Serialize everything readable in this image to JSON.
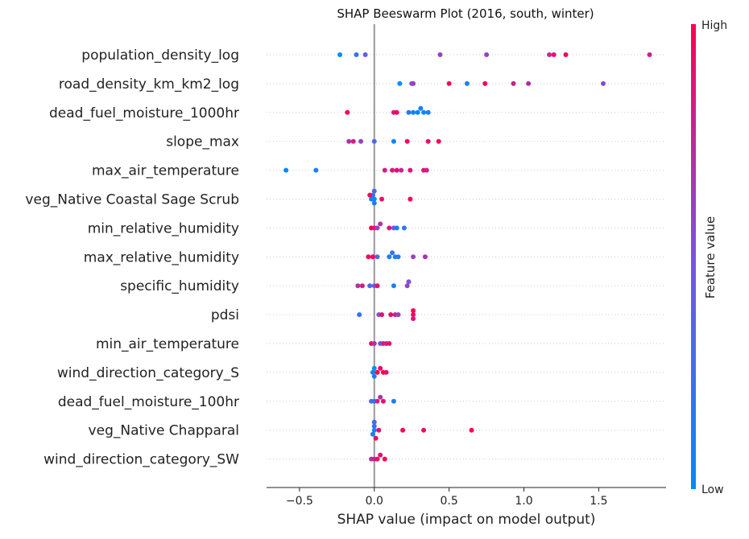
{
  "chart_data": {
    "type": "scatter",
    "title": "SHAP Beeswarm Plot (2016, south, winter)",
    "xlabel": "SHAP value (impact on model output)",
    "xlim": [
      -0.72,
      1.95
    ],
    "xticks": [
      -0.5,
      0.0,
      0.5,
      1.0,
      1.5
    ],
    "xtick_labels": [
      "−0.5",
      "0.0",
      "0.5",
      "1.0",
      "1.5"
    ],
    "grid": false,
    "colorbar": {
      "label": "Feature value",
      "high_label": "High",
      "low_label": "Low",
      "low_color": "#008bfb",
      "mid_color": "#7c52e0",
      "high_color": "#ff0052"
    },
    "features": [
      {
        "name": "population_density_log",
        "points": [
          [
            -0.23,
            0.0
          ],
          [
            -0.12,
            0.2
          ],
          [
            -0.06,
            0.4
          ],
          [
            0.44,
            0.6
          ],
          [
            0.75,
            0.6
          ],
          [
            1.17,
            0.75
          ],
          [
            1.2,
            0.9
          ],
          [
            1.28,
            1.0
          ],
          [
            1.84,
            0.8
          ]
        ]
      },
      {
        "name": "road_density_km_km2_log",
        "points": [
          [
            0.17,
            0.0
          ],
          [
            0.25,
            0.5
          ],
          [
            0.26,
            0.6
          ],
          [
            0.5,
            1.0
          ],
          [
            0.62,
            0.1
          ],
          [
            0.74,
            1.0
          ],
          [
            0.93,
            0.8
          ],
          [
            1.03,
            0.7
          ],
          [
            1.53,
            0.55
          ]
        ]
      },
      {
        "name": "dead_fuel_moisture_1000hr",
        "points": [
          [
            -0.18,
            1.0
          ],
          [
            0.13,
            0.85
          ],
          [
            0.15,
            0.95
          ],
          [
            0.23,
            0.15
          ],
          [
            0.26,
            0.1
          ],
          [
            0.29,
            0.05
          ],
          [
            0.31,
            0.1
          ],
          [
            0.33,
            0.0
          ],
          [
            0.36,
            0.1
          ]
        ]
      },
      {
        "name": "slope_max",
        "points": [
          [
            -0.17,
            0.7
          ],
          [
            -0.14,
            0.8
          ],
          [
            -0.09,
            0.6
          ],
          [
            0.0,
            0.3
          ],
          [
            0.13,
            0.1
          ],
          [
            0.22,
            0.95
          ],
          [
            0.36,
            0.9
          ],
          [
            0.43,
            1.0
          ]
        ]
      },
      {
        "name": "max_air_temperature",
        "points": [
          [
            -0.59,
            0.0
          ],
          [
            -0.39,
            0.1
          ],
          [
            0.07,
            0.8
          ],
          [
            0.12,
            0.85
          ],
          [
            0.15,
            0.9
          ],
          [
            0.18,
            0.75
          ],
          [
            0.24,
            0.85
          ],
          [
            0.33,
            0.9
          ],
          [
            0.35,
            0.8
          ]
        ]
      },
      {
        "name": "veg_Native Coastal Sage Scrub",
        "points": [
          [
            -0.02,
            0.1
          ],
          [
            0.0,
            0.0
          ],
          [
            -0.01,
            0.2
          ],
          [
            0.0,
            0.1
          ],
          [
            0.0,
            0.3
          ],
          [
            -0.03,
            0.95
          ],
          [
            0.05,
            0.9
          ],
          [
            0.24,
            1.0
          ]
        ]
      },
      {
        "name": "min_relative_humidity",
        "points": [
          [
            -0.02,
            1.0
          ],
          [
            0.0,
            0.9
          ],
          [
            0.02,
            0.6
          ],
          [
            0.04,
            0.7
          ],
          [
            0.1,
            0.85
          ],
          [
            0.13,
            0.5
          ],
          [
            0.15,
            0.1
          ],
          [
            0.2,
            0.2
          ]
        ]
      },
      {
        "name": "max_relative_humidity",
        "points": [
          [
            -0.04,
            0.95
          ],
          [
            -0.01,
            1.0
          ],
          [
            0.02,
            0.3
          ],
          [
            0.1,
            0.15
          ],
          [
            0.12,
            0.2
          ],
          [
            0.14,
            0.1
          ],
          [
            0.16,
            0.2
          ],
          [
            0.26,
            0.6
          ],
          [
            0.34,
            0.7
          ]
        ]
      },
      {
        "name": "specific_humidity",
        "points": [
          [
            -0.11,
            0.7
          ],
          [
            -0.08,
            0.85
          ],
          [
            -0.03,
            0.3
          ],
          [
            0.0,
            0.5
          ],
          [
            0.02,
            0.9
          ],
          [
            0.13,
            0.1
          ],
          [
            0.22,
            0.6
          ],
          [
            0.23,
            0.5
          ]
        ]
      },
      {
        "name": "pdsi",
        "points": [
          [
            -0.1,
            0.2
          ],
          [
            0.03,
            0.5
          ],
          [
            0.05,
            0.9
          ],
          [
            0.11,
            0.95
          ],
          [
            0.14,
            0.8
          ],
          [
            0.16,
            0.6
          ],
          [
            0.26,
            0.9
          ],
          [
            0.26,
            1.0
          ],
          [
            0.26,
            0.85
          ]
        ]
      },
      {
        "name": "min_air_temperature",
        "points": [
          [
            -0.02,
            0.9
          ],
          [
            0.0,
            0.7
          ],
          [
            0.04,
            0.4
          ],
          [
            0.06,
            0.85
          ],
          [
            0.08,
            0.8
          ],
          [
            0.1,
            0.9
          ]
        ]
      },
      {
        "name": "wind_direction_category_S",
        "points": [
          [
            -0.01,
            0.15
          ],
          [
            0.0,
            0.0
          ],
          [
            0.0,
            0.1
          ],
          [
            0.02,
            1.0
          ],
          [
            0.04,
            0.95
          ],
          [
            0.06,
            1.0
          ],
          [
            0.08,
            0.9
          ]
        ]
      },
      {
        "name": "dead_fuel_moisture_100hr",
        "points": [
          [
            -0.02,
            0.3
          ],
          [
            0.0,
            0.15
          ],
          [
            0.02,
            0.8
          ],
          [
            0.04,
            0.7
          ],
          [
            0.06,
            0.9
          ],
          [
            0.13,
            0.1
          ]
        ]
      },
      {
        "name": "veg_Native Chapparal",
        "points": [
          [
            0.0,
            0.1
          ],
          [
            0.0,
            0.2
          ],
          [
            -0.01,
            0.15
          ],
          [
            0.0,
            0.3
          ],
          [
            0.01,
            0.95
          ],
          [
            0.03,
            0.9
          ],
          [
            0.19,
            1.0
          ],
          [
            0.33,
            0.95
          ],
          [
            0.65,
            1.0
          ]
        ]
      },
      {
        "name": "wind_direction_category_SW",
        "points": [
          [
            -0.02,
            0.7
          ],
          [
            0.0,
            0.8
          ],
          [
            0.02,
            0.95
          ],
          [
            0.04,
            0.9
          ],
          [
            0.07,
            1.0
          ]
        ]
      }
    ]
  }
}
